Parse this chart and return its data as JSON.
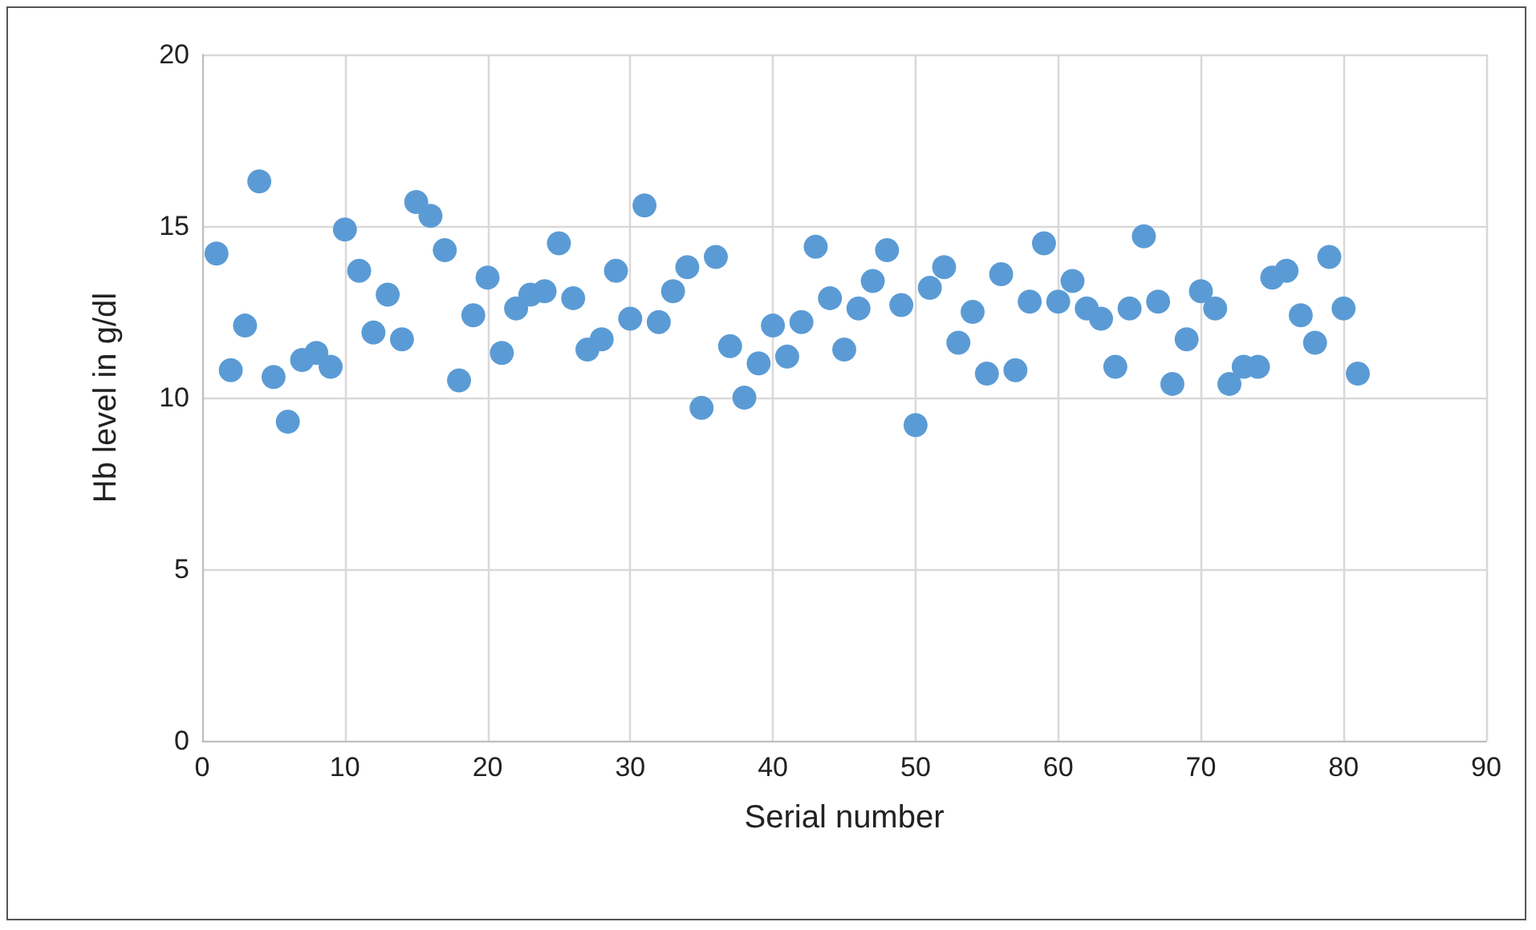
{
  "chart_data": {
    "type": "scatter",
    "xlabel": "Serial number",
    "ylabel": "Hb level in g/dl",
    "x": [
      1,
      2,
      3,
      4,
      5,
      6,
      7,
      8,
      9,
      10,
      11,
      12,
      13,
      14,
      15,
      16,
      17,
      18,
      19,
      20,
      21,
      22,
      23,
      24,
      25,
      26,
      27,
      28,
      29,
      30,
      31,
      32,
      33,
      34,
      35,
      36,
      37,
      38,
      39,
      40,
      41,
      42,
      43,
      44,
      45,
      46,
      47,
      48,
      49,
      50,
      51,
      52,
      53,
      54,
      55,
      56,
      57,
      58,
      59,
      60,
      61,
      62,
      63,
      64,
      65,
      66,
      67,
      68,
      69,
      70,
      71,
      72,
      73,
      74,
      75,
      76,
      77,
      78,
      79,
      80,
      81
    ],
    "series": [
      {
        "color": "#5b9bd5",
        "values": [
          14.2,
          10.8,
          12.1,
          16.3,
          10.6,
          9.3,
          11.1,
          11.3,
          10.9,
          14.9,
          13.7,
          11.9,
          13.0,
          11.7,
          15.7,
          15.3,
          14.3,
          10.5,
          12.4,
          13.5,
          11.3,
          12.6,
          13.0,
          13.1,
          14.5,
          12.9,
          11.4,
          11.7,
          13.7,
          12.3,
          15.6,
          12.2,
          13.1,
          13.8,
          9.7,
          14.1,
          11.5,
          10.0,
          11.0,
          12.1,
          11.2,
          12.2,
          14.4,
          12.9,
          11.4,
          12.6,
          13.4,
          14.3,
          12.7,
          9.2,
          13.2,
          13.8,
          11.6,
          12.5,
          10.7,
          13.6,
          10.8,
          12.8,
          14.5,
          12.8,
          13.4,
          12.6,
          12.3,
          10.9,
          12.6,
          14.7,
          12.8,
          10.4,
          11.7,
          13.1,
          12.6,
          10.4,
          10.9,
          10.9,
          13.5,
          13.7,
          12.4,
          11.6,
          14.1,
          12.6,
          10.7
        ]
      }
    ],
    "xlim": [
      0,
      90
    ],
    "xticks": [
      0,
      10,
      20,
      30,
      40,
      50,
      60,
      70,
      80,
      90
    ],
    "ylim": [
      0,
      20
    ],
    "yticks": [
      0,
      5,
      10,
      15,
      20
    ],
    "grid": true,
    "marker": "circle"
  }
}
